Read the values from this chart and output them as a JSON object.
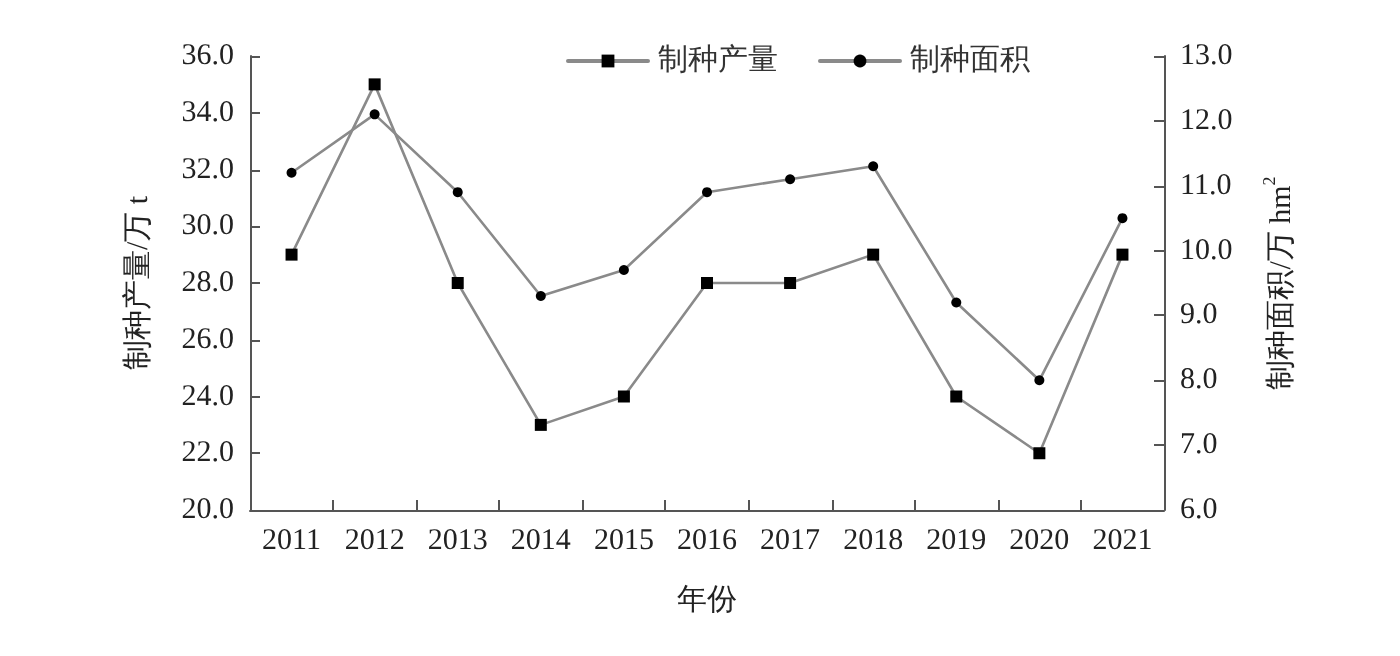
{
  "chart_data": {
    "type": "line",
    "xlabel": "年份",
    "ylabel": "制种产量/万 t",
    "y2label": "制种面积/万 hm$^{2}$",
    "categories": [
      "2011",
      "2012",
      "2013",
      "2014",
      "2015",
      "2016",
      "2017",
      "2018",
      "2019",
      "2020",
      "2021"
    ],
    "series": [
      {
        "name": "制种产量",
        "color": "#000000",
        "marker": "square",
        "values": [
          29,
          35,
          28,
          23,
          24,
          28,
          28,
          29,
          24,
          22,
          29
        ]
      },
      {
        "name": "制种面积",
        "color": "#000000",
        "marker": "circle",
        "axis": "y2",
        "values": [
          11.2,
          12.1,
          10.9,
          9.3,
          9.7,
          10.9,
          11.1,
          11.3,
          9.2,
          8.0,
          10.5
        ]
      }
    ],
    "ylim": [
      20,
      36
    ],
    "yticks": [
      {
        "value": 20,
        "label": "20.0"
      },
      {
        "value": 22,
        "label": "22.0"
      },
      {
        "value": 24,
        "label": "24.0"
      },
      {
        "value": 26,
        "label": "26.0"
      },
      {
        "value": 28,
        "label": "28.0"
      },
      {
        "value": 30,
        "label": "30.0"
      },
      {
        "value": 32,
        "label": "32.0"
      },
      {
        "value": 34,
        "label": "34.0"
      },
      {
        "value": 36,
        "label": "36.0"
      }
    ],
    "y2lim": [
      6,
      13
    ],
    "y2ticks": [
      {
        "value": 6,
        "label": "6.0"
      },
      {
        "value": 7,
        "label": "7.0"
      },
      {
        "value": 8,
        "label": "8.0"
      },
      {
        "value": 9,
        "label": "9.0"
      },
      {
        "value": 10,
        "label": "10.0"
      },
      {
        "value": 11,
        "label": "11.0"
      },
      {
        "value": 12,
        "label": "12.0"
      },
      {
        "value": 13,
        "label": "13.0"
      }
    ],
    "grid": false,
    "legend": "top",
    "line_style": "solid"
  }
}
